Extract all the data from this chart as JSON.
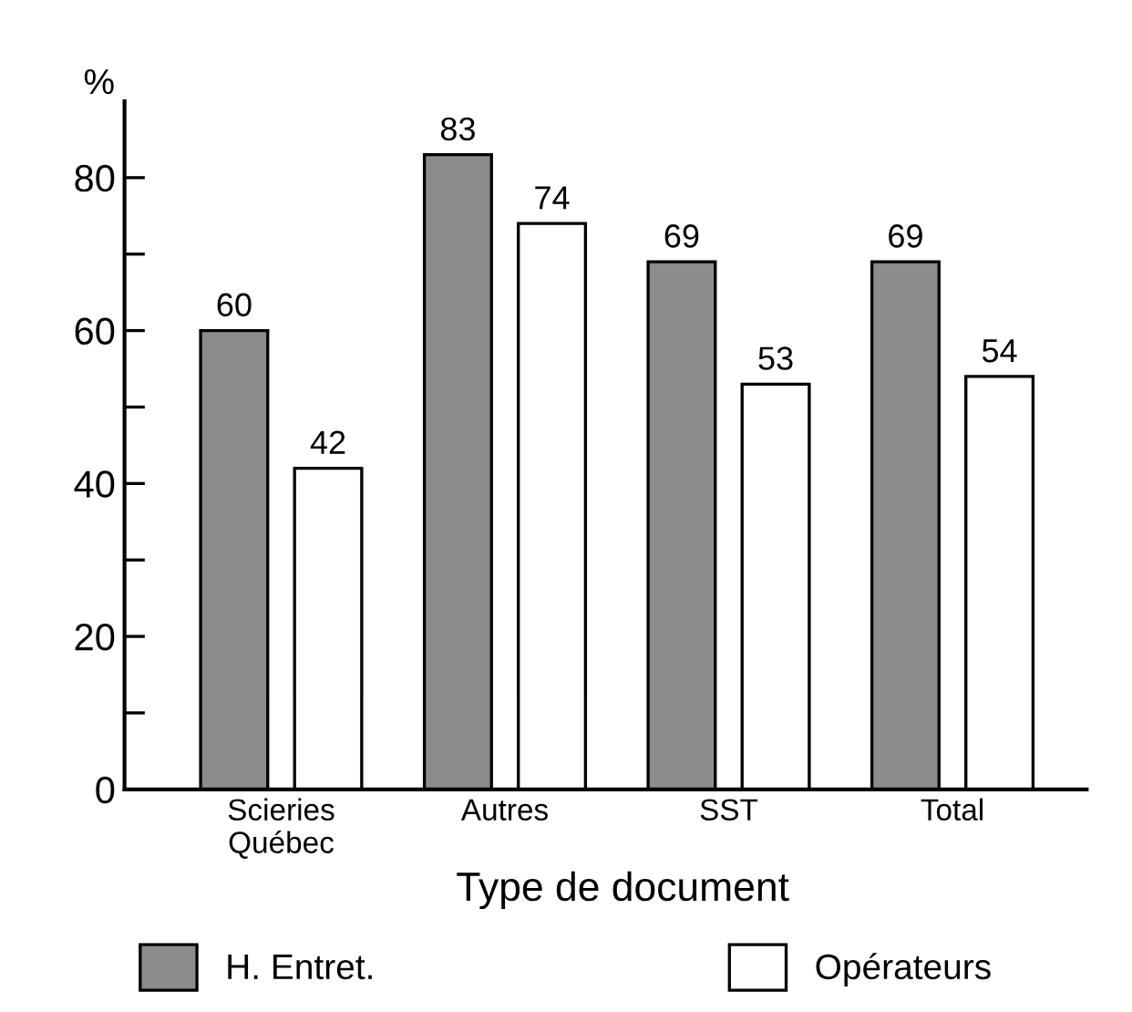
{
  "chart_data": {
    "type": "bar",
    "ylabel": "%",
    "xlabel": "Type de document",
    "categories": [
      "Scieries\nQuébec",
      "Autres",
      "SST",
      "Total"
    ],
    "series": [
      {
        "name": "H. Entret.",
        "color": "#8c8c8c",
        "values": [
          60,
          83,
          69,
          69
        ]
      },
      {
        "name": "Opérateurs",
        "color": "#ffffff",
        "values": [
          42,
          74,
          53,
          54
        ]
      }
    ],
    "ylim": [
      0,
      90
    ],
    "yticks": [
      0,
      {
        "value": 10,
        "label": null
      },
      20,
      {
        "value": 30,
        "label": null
      },
      40,
      {
        "value": 50,
        "label": null
      },
      60,
      {
        "value": 70,
        "label": null
      },
      80
    ],
    "data_labels": true,
    "grid": false,
    "legend": "bottom"
  }
}
